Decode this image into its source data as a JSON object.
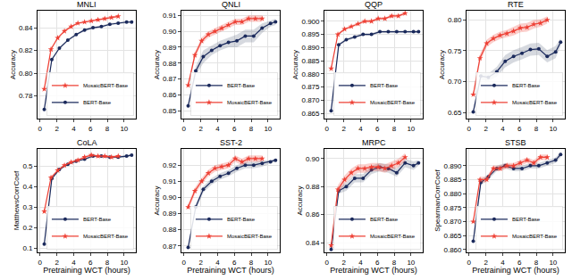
{
  "chart_data": [
    {
      "type": "line",
      "title": "MNLI",
      "y_label": "Accuracy",
      "xlim": [
        -0.3,
        11.4
      ],
      "xticks": [
        0,
        2,
        4,
        6,
        8,
        10
      ],
      "ylim": [
        0.76,
        0.855
      ],
      "yticks": [
        0.78,
        {
          "value": 0.8,
          "label": "0.80"
        },
        0.82,
        0.84
      ],
      "grid": true,
      "legend": "lower right",
      "series": [
        {
          "name": "BERT-Base",
          "color": "#1b2a5c",
          "marker": "circle",
          "x": [
            0.5,
            1.4,
            2.3,
            3.3,
            4.3,
            5.3,
            6.3,
            7.3,
            8.3,
            9.3,
            10.3,
            10.9
          ],
          "values": [
            0.768,
            0.812,
            0.822,
            0.829,
            0.834,
            0.838,
            0.84,
            0.841,
            0.843,
            0.844,
            0.845,
            0.845
          ],
          "error": [
            0.001,
            0.001,
            0.001,
            0.001,
            0.001,
            0.001,
            0.001,
            0.001,
            0.001,
            0.001,
            0.001,
            0.001
          ]
        },
        {
          "name": "MosaicBERT-Base",
          "color": "#ee4035",
          "marker": "star",
          "x": [
            0.5,
            1.3,
            2.1,
            2.9,
            3.7,
            4.5,
            5.3,
            6.1,
            6.9,
            7.7,
            8.5,
            9.3
          ],
          "values": [
            0.786,
            0.821,
            0.831,
            0.837,
            0.841,
            0.844,
            0.845,
            0.846,
            0.847,
            0.848,
            0.849,
            0.85
          ],
          "error": [
            0.001,
            0.001,
            0.001,
            0.001,
            0.001,
            0.001,
            0.001,
            0.001,
            0.001,
            0.001,
            0.001,
            0.001
          ]
        }
      ]
    },
    {
      "type": "line",
      "title": "QNLI",
      "y_label": "Accuracy",
      "xlim": [
        -0.3,
        11.4
      ],
      "xticks": [
        0,
        2,
        4,
        6,
        8,
        10
      ],
      "ylim": [
        0.845,
        0.913
      ],
      "yticks": [
        0.85,
        0.86,
        0.87,
        0.88,
        0.89,
        {
          "value": 0.9,
          "label": "0.90"
        },
        0.91
      ],
      "grid": true,
      "legend": "lower right",
      "series": [
        {
          "name": "BERT-Base",
          "color": "#1b2a5c",
          "marker": "circle",
          "x": [
            0.5,
            1.4,
            2.3,
            3.3,
            4.3,
            5.3,
            6.3,
            7.3,
            8.3,
            9.3,
            10.3,
            10.9
          ],
          "values": [
            0.853,
            0.875,
            0.884,
            0.888,
            0.891,
            0.893,
            0.894,
            0.897,
            0.897,
            0.902,
            0.905,
            0.906
          ],
          "error": [
            0.002,
            0.003,
            0.004,
            0.003,
            0.003,
            0.003,
            0.004,
            0.004,
            0.004,
            0.003,
            0.002,
            0.002
          ]
        },
        {
          "name": "MosaicBERT-Base",
          "color": "#ee4035",
          "marker": "star",
          "x": [
            0.5,
            1.3,
            2.1,
            2.9,
            3.7,
            4.5,
            5.3,
            6.1,
            6.9,
            7.7,
            8.5,
            9.3
          ],
          "values": [
            0.866,
            0.885,
            0.894,
            0.898,
            0.9,
            0.902,
            0.904,
            0.906,
            0.906,
            0.908,
            0.908,
            0.908
          ],
          "error": [
            0.002,
            0.002,
            0.002,
            0.002,
            0.002,
            0.002,
            0.002,
            0.002,
            0.002,
            0.002,
            0.002,
            0.002
          ]
        }
      ]
    },
    {
      "type": "line",
      "title": "QQP",
      "y_label": "Accuracy",
      "xlim": [
        -0.3,
        11.4
      ],
      "xticks": [
        0,
        2,
        4,
        6,
        8,
        10
      ],
      "ylim": [
        0.863,
        0.904
      ],
      "yticks": [
        0.865,
        {
          "value": 0.87,
          "label": "0.870"
        },
        0.875,
        {
          "value": 0.88,
          "label": "0.880"
        },
        0.885,
        {
          "value": 0.89,
          "label": "0.890"
        },
        0.895,
        {
          "value": 0.9,
          "label": "0.900"
        }
      ],
      "grid": true,
      "legend": "lower right",
      "series": [
        {
          "name": "BERT-Base",
          "color": "#1b2a5c",
          "marker": "circle",
          "x": [
            0.5,
            1.4,
            2.3,
            3.3,
            4.3,
            5.3,
            6.3,
            7.3,
            8.3,
            9.3,
            10.3,
            10.9
          ],
          "values": [
            0.866,
            0.891,
            0.893,
            0.894,
            0.895,
            0.895,
            0.896,
            0.896,
            0.896,
            0.896,
            0.896,
            0.896
          ],
          "error": [
            0.0005,
            0.0005,
            0.0005,
            0.0005,
            0.0005,
            0.0005,
            0.0005,
            0.0005,
            0.0005,
            0.0005,
            0.0005,
            0.0005
          ]
        },
        {
          "name": "MosaicBERT-Base",
          "color": "#ee4035",
          "marker": "star",
          "x": [
            0.5,
            1.3,
            2.1,
            2.9,
            3.7,
            4.5,
            5.3,
            6.1,
            6.9,
            7.7,
            8.5,
            9.3
          ],
          "values": [
            0.882,
            0.895,
            0.897,
            0.898,
            0.899,
            0.9,
            0.9,
            0.901,
            0.901,
            0.902,
            0.902,
            0.903
          ],
          "error": [
            0.0005,
            0.0005,
            0.0005,
            0.0005,
            0.0005,
            0.0005,
            0.0005,
            0.0005,
            0.0005,
            0.0005,
            0.0005,
            0.0005
          ]
        }
      ]
    },
    {
      "type": "line",
      "title": "RTE",
      "y_label": "Accuracy",
      "xlim": [
        -0.3,
        11.4
      ],
      "xticks": [
        0,
        2,
        4,
        6,
        8,
        10
      ],
      "ylim": [
        0.64,
        0.815
      ],
      "yticks": [
        0.65,
        {
          "value": 0.7,
          "label": "0.70"
        },
        0.75,
        {
          "value": 0.8,
          "label": "0.80"
        }
      ],
      "grid": true,
      "legend": "lower right",
      "series": [
        {
          "name": "BERT-Base",
          "color": "#1b2a5c",
          "marker": "circle",
          "x": [
            0.5,
            1.4,
            2.3,
            3.3,
            4.3,
            5.3,
            6.3,
            7.3,
            8.3,
            9.3,
            10.3,
            10.9
          ],
          "values": [
            0.651,
            0.709,
            0.707,
            0.716,
            0.733,
            0.741,
            0.746,
            0.752,
            0.753,
            0.741,
            0.748,
            0.764
          ],
          "error": [
            0.004,
            0.006,
            0.006,
            0.008,
            0.01,
            0.01,
            0.01,
            0.01,
            0.01,
            0.01,
            0.01,
            0.006
          ]
        },
        {
          "name": "MosaicBERT-Base",
          "color": "#ee4035",
          "marker": "star",
          "x": [
            0.5,
            1.3,
            2.1,
            2.9,
            3.7,
            4.5,
            5.3,
            6.1,
            6.9,
            7.7,
            8.5,
            9.3
          ],
          "values": [
            0.679,
            0.738,
            0.762,
            0.77,
            0.775,
            0.778,
            0.782,
            0.787,
            0.788,
            0.793,
            0.795,
            0.8
          ],
          "error": [
            0.004,
            0.006,
            0.006,
            0.006,
            0.006,
            0.006,
            0.007,
            0.007,
            0.007,
            0.007,
            0.006,
            0.006
          ]
        }
      ]
    },
    {
      "type": "line",
      "title": "CoLA",
      "y_label": "MatthewsCorrCoef",
      "x_label": "Pretraining WCT (hours)",
      "xlim": [
        -0.3,
        11.4
      ],
      "xticks": [
        0,
        2,
        4,
        6,
        8,
        10
      ],
      "ylim": [
        0.08,
        0.585
      ],
      "yticks": [
        0.1,
        0.2,
        0.3,
        0.4,
        0.5
      ],
      "grid": true,
      "legend": "lower right",
      "series": [
        {
          "name": "BERT-Base",
          "color": "#1b2a5c",
          "marker": "circle",
          "x": [
            0.5,
            1.4,
            2.3,
            3.3,
            4.3,
            5.3,
            6.3,
            7.3,
            8.3,
            9.3,
            10.3,
            10.9
          ],
          "values": [
            0.12,
            0.44,
            0.485,
            0.51,
            0.525,
            0.535,
            0.55,
            0.55,
            0.545,
            0.545,
            0.55,
            0.555
          ],
          "error": [
            0.005,
            0.005,
            0.005,
            0.005,
            0.005,
            0.006,
            0.006,
            0.006,
            0.006,
            0.006,
            0.006,
            0.005
          ]
        },
        {
          "name": "MosaicBERT-Base",
          "color": "#ee4035",
          "marker": "star",
          "x": [
            0.5,
            1.3,
            2.1,
            2.9,
            3.7,
            4.5,
            5.3,
            6.1,
            6.9,
            7.7,
            8.5,
            9.3
          ],
          "values": [
            0.28,
            0.445,
            0.48,
            0.505,
            0.52,
            0.53,
            0.545,
            0.555,
            0.55,
            0.55,
            0.545,
            0.55
          ],
          "error": [
            0.005,
            0.005,
            0.005,
            0.005,
            0.005,
            0.006,
            0.006,
            0.006,
            0.006,
            0.006,
            0.006,
            0.006
          ]
        }
      ]
    },
    {
      "type": "line",
      "title": "SST-2",
      "y_label": "Accuracy",
      "x_label": "Pretraining WCT (hours)",
      "xlim": [
        -0.3,
        11.4
      ],
      "xticks": [
        0,
        2,
        4,
        6,
        8,
        10
      ],
      "ylim": [
        0.866,
        0.93
      ],
      "yticks": [
        0.87,
        0.88,
        0.89,
        {
          "value": 0.9,
          "label": "0.90"
        },
        0.91,
        0.92
      ],
      "grid": true,
      "legend": "lower right",
      "series": [
        {
          "name": "BERT-Base",
          "color": "#1b2a5c",
          "marker": "circle",
          "x": [
            0.5,
            1.4,
            2.3,
            3.3,
            4.3,
            5.3,
            6.3,
            7.3,
            8.3,
            9.3,
            10.3,
            10.9
          ],
          "values": [
            0.869,
            0.894,
            0.905,
            0.91,
            0.913,
            0.915,
            0.918,
            0.92,
            0.92,
            0.921,
            0.922,
            0.923
          ],
          "error": [
            0.001,
            0.002,
            0.002,
            0.002,
            0.002,
            0.002,
            0.002,
            0.002,
            0.002,
            0.002,
            0.001,
            0.001
          ]
        },
        {
          "name": "MosaicBERT-Base",
          "color": "#ee4035",
          "marker": "star",
          "x": [
            0.5,
            1.3,
            2.1,
            2.9,
            3.7,
            4.5,
            5.3,
            6.1,
            6.9,
            7.7,
            8.5,
            9.3
          ],
          "values": [
            0.894,
            0.904,
            0.91,
            0.915,
            0.918,
            0.919,
            0.92,
            0.924,
            0.922,
            0.924,
            0.924,
            0.924
          ],
          "error": [
            0.002,
            0.002,
            0.002,
            0.002,
            0.002,
            0.002,
            0.002,
            0.002,
            0.002,
            0.002,
            0.002,
            0.002
          ]
        }
      ]
    },
    {
      "type": "line",
      "title": "MRPC",
      "y_label": "Accuracy",
      "x_label": "Pretraining WCT (hours)",
      "xlim": [
        -0.3,
        11.4
      ],
      "xticks": [
        0,
        2,
        4,
        6,
        8,
        10
      ],
      "ylim": [
        0.833,
        0.907
      ],
      "yticks": [
        0.84,
        0.86,
        0.88,
        {
          "value": 0.9,
          "label": "0.90"
        }
      ],
      "grid": true,
      "legend": "lower right",
      "series": [
        {
          "name": "BERT-Base",
          "color": "#1b2a5c",
          "marker": "circle",
          "x": [
            0.5,
            1.4,
            2.3,
            3.3,
            4.3,
            5.3,
            6.3,
            7.3,
            8.3,
            9.3,
            10.3,
            10.9
          ],
          "values": [
            0.835,
            0.877,
            0.88,
            0.886,
            0.886,
            0.892,
            0.894,
            0.893,
            0.89,
            0.897,
            0.895,
            0.897
          ],
          "error": [
            0.002,
            0.002,
            0.003,
            0.003,
            0.003,
            0.003,
            0.003,
            0.003,
            0.003,
            0.003,
            0.003,
            0.002
          ]
        },
        {
          "name": "MosaicBERT-Base",
          "color": "#ee4035",
          "marker": "star",
          "x": [
            0.5,
            1.3,
            2.1,
            2.9,
            3.7,
            4.5,
            5.3,
            6.1,
            6.9,
            7.7,
            8.5,
            9.3
          ],
          "values": [
            0.838,
            0.878,
            0.885,
            0.89,
            0.893,
            0.893,
            0.894,
            0.894,
            0.893,
            0.895,
            0.897,
            0.901
          ],
          "error": [
            0.002,
            0.003,
            0.003,
            0.003,
            0.003,
            0.003,
            0.003,
            0.003,
            0.003,
            0.003,
            0.003,
            0.003
          ]
        }
      ]
    },
    {
      "type": "line",
      "title": "STSB",
      "y_label": "SpearmanCorrCoef",
      "x_label": "Pretraining WCT (hours)",
      "xlim": [
        -0.3,
        11.4
      ],
      "xticks": [
        0,
        2,
        4,
        6,
        8,
        10
      ],
      "ylim": [
        0.859,
        0.896
      ],
      "yticks": [
        {
          "value": 0.86,
          "label": "0.860"
        },
        0.865,
        {
          "value": 0.87,
          "label": "0.870"
        },
        0.875,
        {
          "value": 0.88,
          "label": "0.880"
        },
        0.885,
        {
          "value": 0.89,
          "label": "0.890"
        }
      ],
      "grid": true,
      "legend": "lower right",
      "series": [
        {
          "name": "BERT-Base",
          "color": "#1b2a5c",
          "marker": "circle",
          "x": [
            0.5,
            1.4,
            2.3,
            3.3,
            4.3,
            5.3,
            6.3,
            7.3,
            8.3,
            9.3,
            10.3,
            10.9
          ],
          "values": [
            0.863,
            0.884,
            0.886,
            0.889,
            0.89,
            0.889,
            0.889,
            0.89,
            0.89,
            0.891,
            0.892,
            0.894
          ],
          "error": [
            0.001,
            0.001,
            0.001,
            0.001,
            0.001,
            0.001,
            0.001,
            0.001,
            0.001,
            0.001,
            0.001,
            0.001
          ]
        },
        {
          "name": "MosaicBERT-Base",
          "color": "#ee4035",
          "marker": "star",
          "x": [
            0.5,
            1.3,
            2.1,
            2.9,
            3.7,
            4.5,
            5.3,
            6.1,
            6.9,
            7.7,
            8.5,
            9.3
          ],
          "values": [
            0.87,
            0.885,
            0.885,
            0.889,
            0.889,
            0.89,
            0.89,
            0.891,
            0.892,
            0.891,
            0.893,
            0.893
          ],
          "error": [
            0.001,
            0.001,
            0.001,
            0.001,
            0.001,
            0.001,
            0.001,
            0.001,
            0.001,
            0.001,
            0.001,
            0.001
          ]
        }
      ]
    }
  ]
}
